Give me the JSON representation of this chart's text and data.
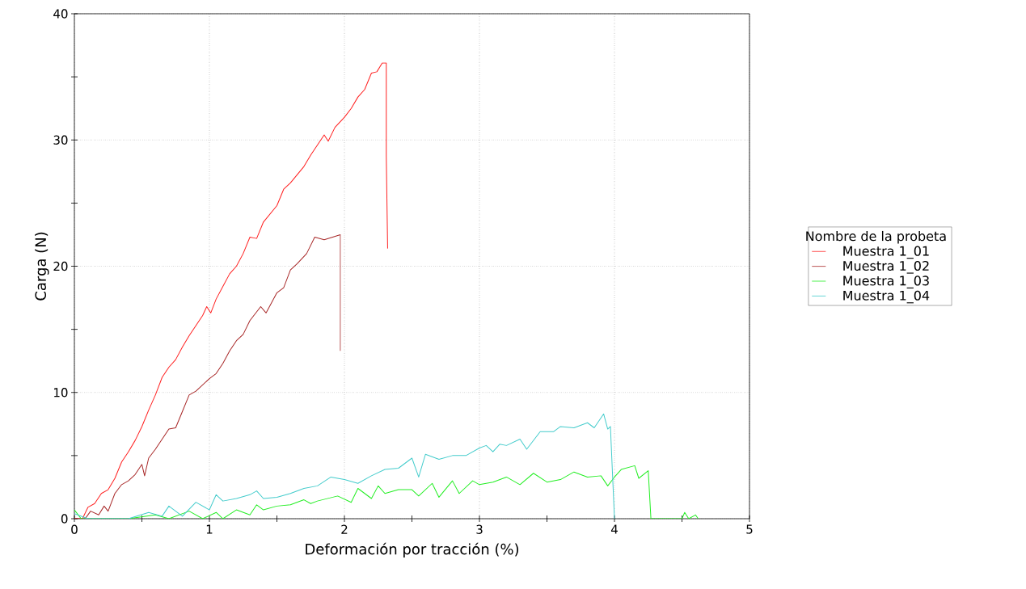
{
  "chart_data": {
    "type": "line",
    "xlabel": "Deformación por tracción (%)",
    "ylabel": "Carga (N)",
    "legend_title": "Nombre de la probeta",
    "legend": "right",
    "grid": true,
    "line_style": "solid",
    "marker": "none",
    "xlim": [
      0,
      5
    ],
    "ylim": [
      0,
      40
    ],
    "xticks": [
      0,
      1,
      2,
      3,
      4,
      5
    ],
    "yticks": [
      0,
      10,
      20,
      30,
      40
    ],
    "series": [
      {
        "name": "Muestra 1_01",
        "color": "#ff2020",
        "x": [
          0,
          0.06,
          0.1,
          0.15,
          0.2,
          0.25,
          0.3,
          0.35,
          0.4,
          0.45,
          0.5,
          0.55,
          0.6,
          0.65,
          0.7,
          0.75,
          0.8,
          0.85,
          0.9,
          0.95,
          0.98,
          1.01,
          1.05,
          1.1,
          1.15,
          1.2,
          1.25,
          1.3,
          1.35,
          1.4,
          1.5,
          1.55,
          1.6,
          1.7,
          1.75,
          1.8,
          1.85,
          1.88,
          1.93,
          2.0,
          2.05,
          2.1,
          2.15,
          2.2,
          2.24,
          2.28,
          2.31,
          2.31,
          2.32
        ],
        "values": [
          0,
          0,
          0.9,
          1.2,
          2,
          2.3,
          3.2,
          4.5,
          5.3,
          6.2,
          7.3,
          8.6,
          9.8,
          11.2,
          12,
          12.6,
          13.6,
          14.5,
          15.3,
          16.1,
          16.8,
          16.3,
          17.4,
          18.4,
          19.4,
          20,
          21,
          22.3,
          22.2,
          23.5,
          24.8,
          26.1,
          26.6,
          27.9,
          28.8,
          29.6,
          30.4,
          29.9,
          31,
          31.8,
          32.5,
          33.4,
          34,
          35.3,
          35.4,
          36.1,
          36.1,
          28.7,
          21.4
        ]
      },
      {
        "name": "Muestra 1_02",
        "color": "#a82828",
        "x": [
          0,
          0.08,
          0.12,
          0.18,
          0.22,
          0.25,
          0.3,
          0.35,
          0.4,
          0.45,
          0.5,
          0.52,
          0.55,
          0.6,
          0.7,
          0.75,
          0.8,
          0.85,
          0.9,
          1.0,
          1.05,
          1.1,
          1.15,
          1.2,
          1.25,
          1.3,
          1.38,
          1.42,
          1.5,
          1.55,
          1.6,
          1.65,
          1.72,
          1.78,
          1.85,
          1.97,
          1.97
        ],
        "values": [
          0,
          0,
          0.6,
          0.3,
          1,
          0.6,
          2,
          2.7,
          3,
          3.5,
          4.3,
          3.4,
          4.8,
          5.5,
          7.1,
          7.2,
          8.5,
          9.8,
          10.1,
          11.1,
          11.5,
          12.3,
          13.3,
          14.1,
          14.6,
          15.7,
          16.8,
          16.3,
          17.9,
          18.3,
          19.7,
          20.2,
          21,
          22.3,
          22.1,
          22.5,
          13.3
        ]
      },
      {
        "name": "Muestra 1_03",
        "color": "#22ee22",
        "x": [
          0,
          0.05,
          0.4,
          0.6,
          0.7,
          0.85,
          0.95,
          1.05,
          1.1,
          1.2,
          1.3,
          1.35,
          1.4,
          1.5,
          1.6,
          1.7,
          1.75,
          1.8,
          1.95,
          2.05,
          2.1,
          2.2,
          2.25,
          2.3,
          2.4,
          2.5,
          2.55,
          2.65,
          2.7,
          2.8,
          2.85,
          2.95,
          3.0,
          3.1,
          3.2,
          3.3,
          3.4,
          3.5,
          3.6,
          3.7,
          3.8,
          3.9,
          3.95,
          4.0,
          4.05,
          4.15,
          4.18,
          4.25,
          4.27,
          4.5,
          4.52,
          4.55,
          4.6,
          4.62
        ],
        "values": [
          0.7,
          0,
          0,
          0.3,
          0,
          0.6,
          0,
          0.5,
          0,
          0.7,
          0.3,
          1.1,
          0.7,
          1,
          1.1,
          1.5,
          1.2,
          1.4,
          1.8,
          1.3,
          2.4,
          1.6,
          2.6,
          2,
          2.3,
          2.3,
          1.8,
          2.8,
          1.7,
          3,
          2,
          3,
          2.7,
          2.9,
          3.3,
          2.7,
          3.6,
          2.9,
          3.1,
          3.7,
          3.3,
          3.4,
          2.6,
          3.3,
          3.9,
          4.2,
          3.2,
          3.8,
          0,
          0,
          0.5,
          0,
          0.3,
          0
        ]
      },
      {
        "name": "Muestra 1_04",
        "color": "#44cccc",
        "x": [
          0,
          0.1,
          0.4,
          0.55,
          0.65,
          0.7,
          0.8,
          0.9,
          1.0,
          1.05,
          1.1,
          1.2,
          1.3,
          1.35,
          1.4,
          1.5,
          1.6,
          1.7,
          1.8,
          1.9,
          2.0,
          2.1,
          2.2,
          2.3,
          2.4,
          2.5,
          2.55,
          2.6,
          2.7,
          2.8,
          2.9,
          3.0,
          3.05,
          3.1,
          3.15,
          3.2,
          3.3,
          3.35,
          3.45,
          3.55,
          3.6,
          3.7,
          3.8,
          3.85,
          3.92,
          3.95,
          3.97,
          4.0
        ],
        "values": [
          0.4,
          0,
          0,
          0.5,
          0.2,
          1,
          0.2,
          1.3,
          0.7,
          1.9,
          1.4,
          1.6,
          1.9,
          2.2,
          1.6,
          1.7,
          2,
          2.4,
          2.6,
          3.3,
          3.1,
          2.8,
          3.4,
          3.9,
          4,
          4.8,
          3.3,
          5.1,
          4.7,
          5,
          5,
          5.6,
          5.8,
          5.3,
          5.9,
          5.8,
          6.3,
          5.5,
          6.9,
          6.9,
          7.3,
          7.2,
          7.6,
          7.2,
          8.3,
          7.1,
          7.3,
          0
        ]
      }
    ]
  }
}
